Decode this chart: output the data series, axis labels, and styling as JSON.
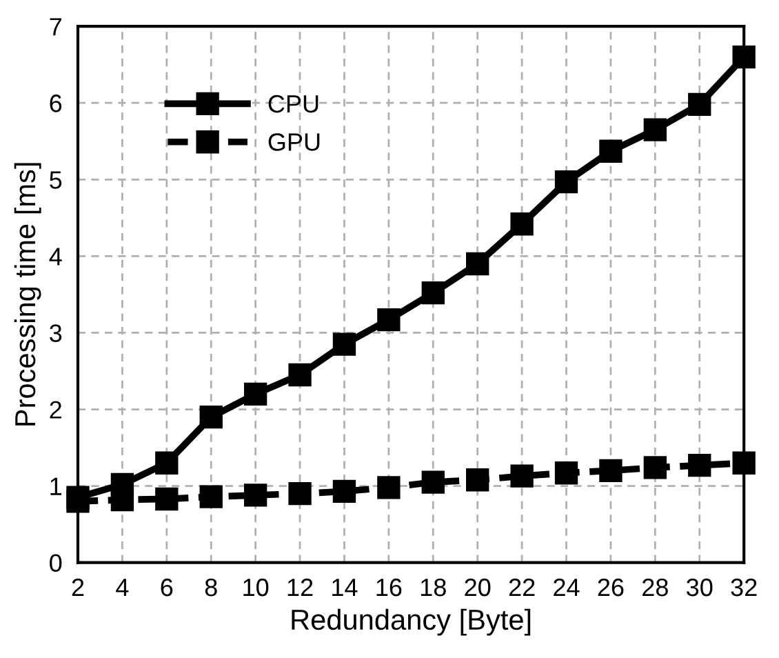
{
  "chart_data": {
    "type": "line",
    "xlabel": "Redundancy [Byte]",
    "ylabel": "Processing time [ms]",
    "x": [
      2,
      4,
      6,
      8,
      10,
      12,
      14,
      16,
      18,
      20,
      22,
      24,
      26,
      28,
      30,
      32
    ],
    "series": [
      {
        "name": "CPU",
        "color": "#000000",
        "line_style": "solid",
        "marker": "square",
        "values": [
          0.85,
          1.02,
          1.3,
          1.9,
          2.2,
          2.45,
          2.85,
          3.17,
          3.52,
          3.9,
          4.42,
          4.97,
          5.37,
          5.65,
          5.98,
          6.6
        ]
      },
      {
        "name": "GPU",
        "color": "#000000",
        "line_style": "dashed",
        "marker": "square",
        "values": [
          0.8,
          0.82,
          0.83,
          0.86,
          0.88,
          0.9,
          0.93,
          0.98,
          1.05,
          1.08,
          1.13,
          1.17,
          1.2,
          1.24,
          1.27,
          1.3
        ]
      }
    ],
    "xlim": [
      2,
      32
    ],
    "xticks": [
      2,
      4,
      6,
      8,
      10,
      12,
      14,
      16,
      18,
      20,
      22,
      24,
      26,
      28,
      30,
      32
    ],
    "ylim": [
      0,
      7
    ],
    "yticks": [
      0,
      1,
      2,
      3,
      4,
      5,
      6,
      7
    ],
    "grid": true,
    "legend": "top left"
  }
}
